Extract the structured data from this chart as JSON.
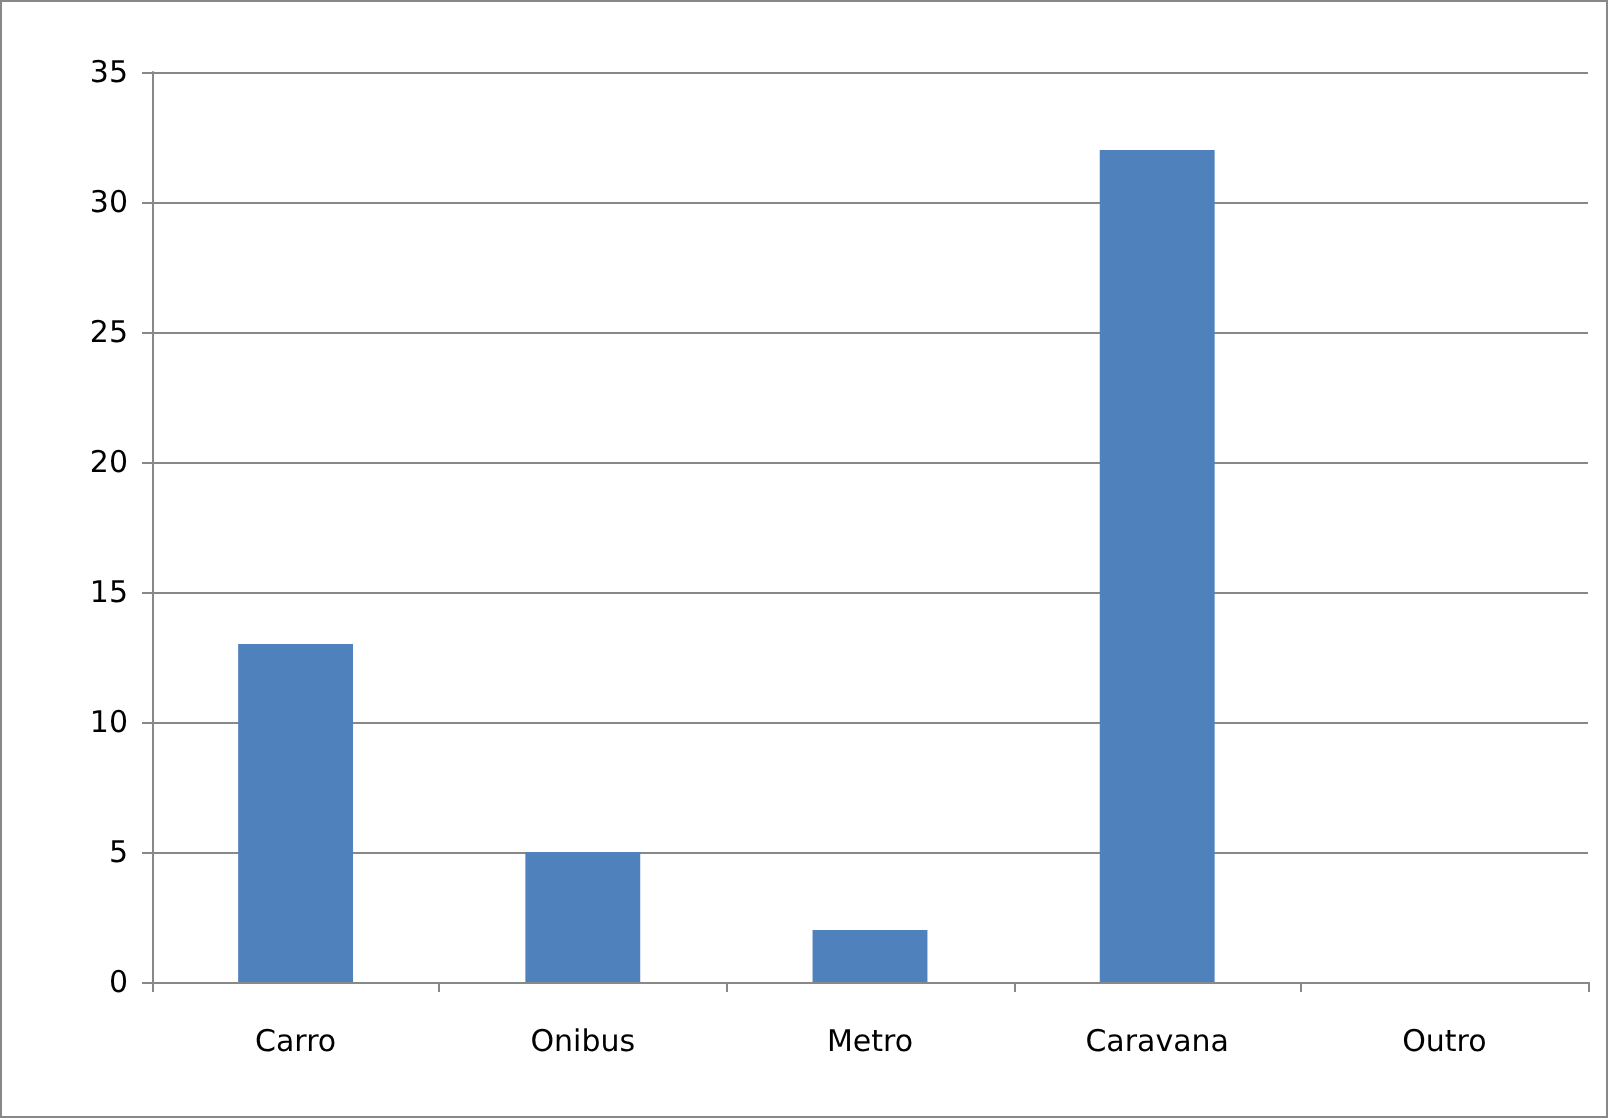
{
  "chart_data": {
    "type": "bar",
    "categories": [
      "Carro",
      "Onibus",
      "Metro",
      "Caravana",
      "Outro"
    ],
    "values": [
      13,
      5,
      2,
      32,
      0
    ],
    "color": "#4f81bd",
    "ylim": [
      0,
      35
    ],
    "yticks": [
      0,
      5,
      10,
      15,
      20,
      25,
      30,
      35
    ],
    "grid": "y"
  }
}
